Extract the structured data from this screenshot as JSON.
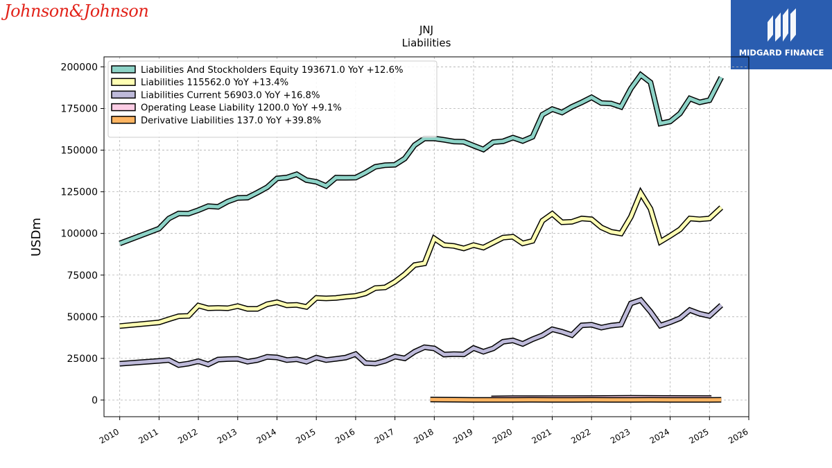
{
  "brand": {
    "logo_text": "Johnson&Johnson",
    "badge_text": "MIDGARD FINANCE",
    "badge_color": "#2a5db0"
  },
  "chart_data": {
    "type": "line",
    "title": "JNJ",
    "subtitle": "Liabilities",
    "ylabel": "USDm",
    "xlabel": "",
    "xlim": [
      2009.6,
      2026.0
    ],
    "ylim": [
      -10000,
      206000
    ],
    "x_ticks": [
      2010,
      2011,
      2012,
      2013,
      2014,
      2015,
      2016,
      2017,
      2018,
      2019,
      2020,
      2021,
      2022,
      2023,
      2024,
      2025,
      2026
    ],
    "y_ticks": [
      0,
      25000,
      50000,
      75000,
      100000,
      125000,
      150000,
      175000,
      200000
    ],
    "grid": true,
    "legend_position": "top-left",
    "series": [
      {
        "name": "Liabilities And Stockholders Equity",
        "legend": "Liabilities And Stockholders Equity  193671.0 YoY +12.6%",
        "color": "#8dd3c7",
        "x": [
          2010.0,
          2011.0,
          2011.25,
          2011.5,
          2011.75,
          2012.0,
          2012.25,
          2012.5,
          2012.75,
          2013.0,
          2013.25,
          2013.5,
          2013.75,
          2014.0,
          2014.25,
          2014.5,
          2014.75,
          2015.0,
          2015.25,
          2015.5,
          2015.75,
          2016.0,
          2016.25,
          2016.5,
          2016.75,
          2017.0,
          2017.25,
          2017.5,
          2017.75,
          2018.0,
          2018.25,
          2018.5,
          2018.75,
          2019.0,
          2019.25,
          2019.5,
          2019.75,
          2020.0,
          2020.25,
          2020.5,
          2020.75,
          2021.0,
          2021.25,
          2021.5,
          2021.75,
          2022.0,
          2022.25,
          2022.5,
          2022.75,
          2023.0,
          2023.25,
          2023.5,
          2023.75,
          2024.0,
          2024.25,
          2024.5,
          2024.75,
          2025.0,
          2025.3
        ],
        "values": [
          94000,
          102900,
          109000,
          112000,
          111900,
          114000,
          116400,
          116000,
          119200,
          121300,
          121500,
          124500,
          127700,
          133000,
          133600,
          135500,
          132000,
          131000,
          128500,
          133500,
          133400,
          133500,
          136500,
          140000,
          141000,
          141200,
          145000,
          153000,
          157000,
          157000,
          156200,
          155200,
          155000,
          152700,
          150400,
          154800,
          155300,
          157500,
          155500,
          158000,
          171300,
          174600,
          172600,
          176000,
          178700,
          181700,
          178300,
          178000,
          176000,
          187000,
          195200,
          190700,
          166000,
          167200,
          172000,
          181000,
          178700,
          180000,
          193671
        ]
      },
      {
        "name": "Liabilities",
        "legend": "Liabilities  115562.0 YoY +13.4%",
        "color": "#ffffb3",
        "x": [
          2010.0,
          2011.0,
          2011.25,
          2011.5,
          2011.75,
          2012.0,
          2012.25,
          2012.5,
          2012.75,
          2013.0,
          2013.25,
          2013.5,
          2013.75,
          2014.0,
          2014.25,
          2014.5,
          2014.75,
          2015.0,
          2015.25,
          2015.5,
          2015.75,
          2016.0,
          2016.25,
          2016.5,
          2016.75,
          2017.0,
          2017.25,
          2017.5,
          2017.75,
          2018.0,
          2018.25,
          2018.5,
          2018.75,
          2019.0,
          2019.25,
          2019.5,
          2019.75,
          2020.0,
          2020.25,
          2020.5,
          2020.75,
          2021.0,
          2021.25,
          2021.5,
          2021.75,
          2022.0,
          2022.25,
          2022.5,
          2022.75,
          2023.0,
          2023.25,
          2023.5,
          2023.75,
          2024.0,
          2024.25,
          2024.5,
          2024.75,
          2025.0,
          2025.3
        ],
        "values": [
          44400,
          46600,
          48500,
          50300,
          50500,
          56700,
          55100,
          55300,
          55100,
          56400,
          54700,
          54700,
          57500,
          58700,
          56900,
          57100,
          55900,
          61300,
          61000,
          61300,
          62000,
          62500,
          64000,
          67200,
          67600,
          71000,
          75500,
          81000,
          82000,
          97000,
          93000,
          92500,
          91000,
          93000,
          91500,
          94500,
          97500,
          98000,
          94000,
          95500,
          107600,
          111800,
          106700,
          107000,
          109000,
          108500,
          103600,
          101000,
          100000,
          110000,
          124300,
          114800,
          95000,
          98600,
          102400,
          109000,
          108500,
          109000,
          115562
        ]
      },
      {
        "name": "Liabilities Current",
        "legend": "Liabilities Current  56903.0 YoY +16.8%",
        "color": "#bebada",
        "x": [
          2010.0,
          2011.0,
          2011.25,
          2011.5,
          2011.75,
          2012.0,
          2012.25,
          2012.5,
          2012.75,
          2013.0,
          2013.25,
          2013.5,
          2013.75,
          2014.0,
          2014.25,
          2014.5,
          2014.75,
          2015.0,
          2015.25,
          2015.5,
          2015.75,
          2016.0,
          2016.25,
          2016.5,
          2016.75,
          2017.0,
          2017.25,
          2017.5,
          2017.75,
          2018.0,
          2018.25,
          2018.5,
          2018.75,
          2019.0,
          2019.25,
          2019.5,
          2019.75,
          2020.0,
          2020.25,
          2020.5,
          2020.75,
          2021.0,
          2021.25,
          2021.5,
          2021.75,
          2022.0,
          2022.25,
          2022.5,
          2022.75,
          2023.0,
          2023.25,
          2023.5,
          2023.75,
          2024.0,
          2024.25,
          2024.5,
          2024.75,
          2025.0,
          2025.3
        ],
        "values": [
          21800,
          23500,
          24000,
          21000,
          21900,
          23300,
          21400,
          24300,
          24600,
          24700,
          23000,
          24000,
          25900,
          25600,
          24000,
          24500,
          23000,
          25500,
          24000,
          24700,
          25500,
          27600,
          22200,
          21900,
          23500,
          26100,
          25000,
          29000,
          31700,
          31000,
          27300,
          27600,
          27400,
          31200,
          29000,
          31000,
          35000,
          35800,
          33700,
          36500,
          38800,
          42500,
          41000,
          39000,
          44800,
          45200,
          43500,
          44700,
          45300,
          58000,
          60000,
          53000,
          44700,
          46700,
          49100,
          54000,
          51800,
          50500,
          56903
        ]
      },
      {
        "name": "Operating Lease Liability",
        "legend": "Operating Lease Liability  1200.0 YoY +9.1%",
        "color": "#fccde5",
        "x": [
          2019.45,
          2020.0,
          2021.0,
          2022.0,
          2023.0,
          2024.0,
          2025.05
        ],
        "values": [
          1000,
          1100,
          1150,
          1200,
          1300,
          1250,
          1200
        ]
      },
      {
        "name": "Derivative Liabilities",
        "legend": "Derivative Liabilities  137.0 YoY +39.8%",
        "color": "#fdb462",
        "x": [
          2017.9,
          2018.5,
          2019.0,
          2019.5,
          2020.0,
          2020.5,
          2021.0,
          2021.5,
          2022.0,
          2022.5,
          2023.0,
          2023.5,
          2024.0,
          2024.5,
          2025.0,
          2025.3
        ],
        "values": [
          300,
          200,
          120,
          80,
          100,
          150,
          90,
          120,
          140,
          130,
          110,
          160,
          120,
          110,
          100,
          137
        ]
      }
    ]
  }
}
